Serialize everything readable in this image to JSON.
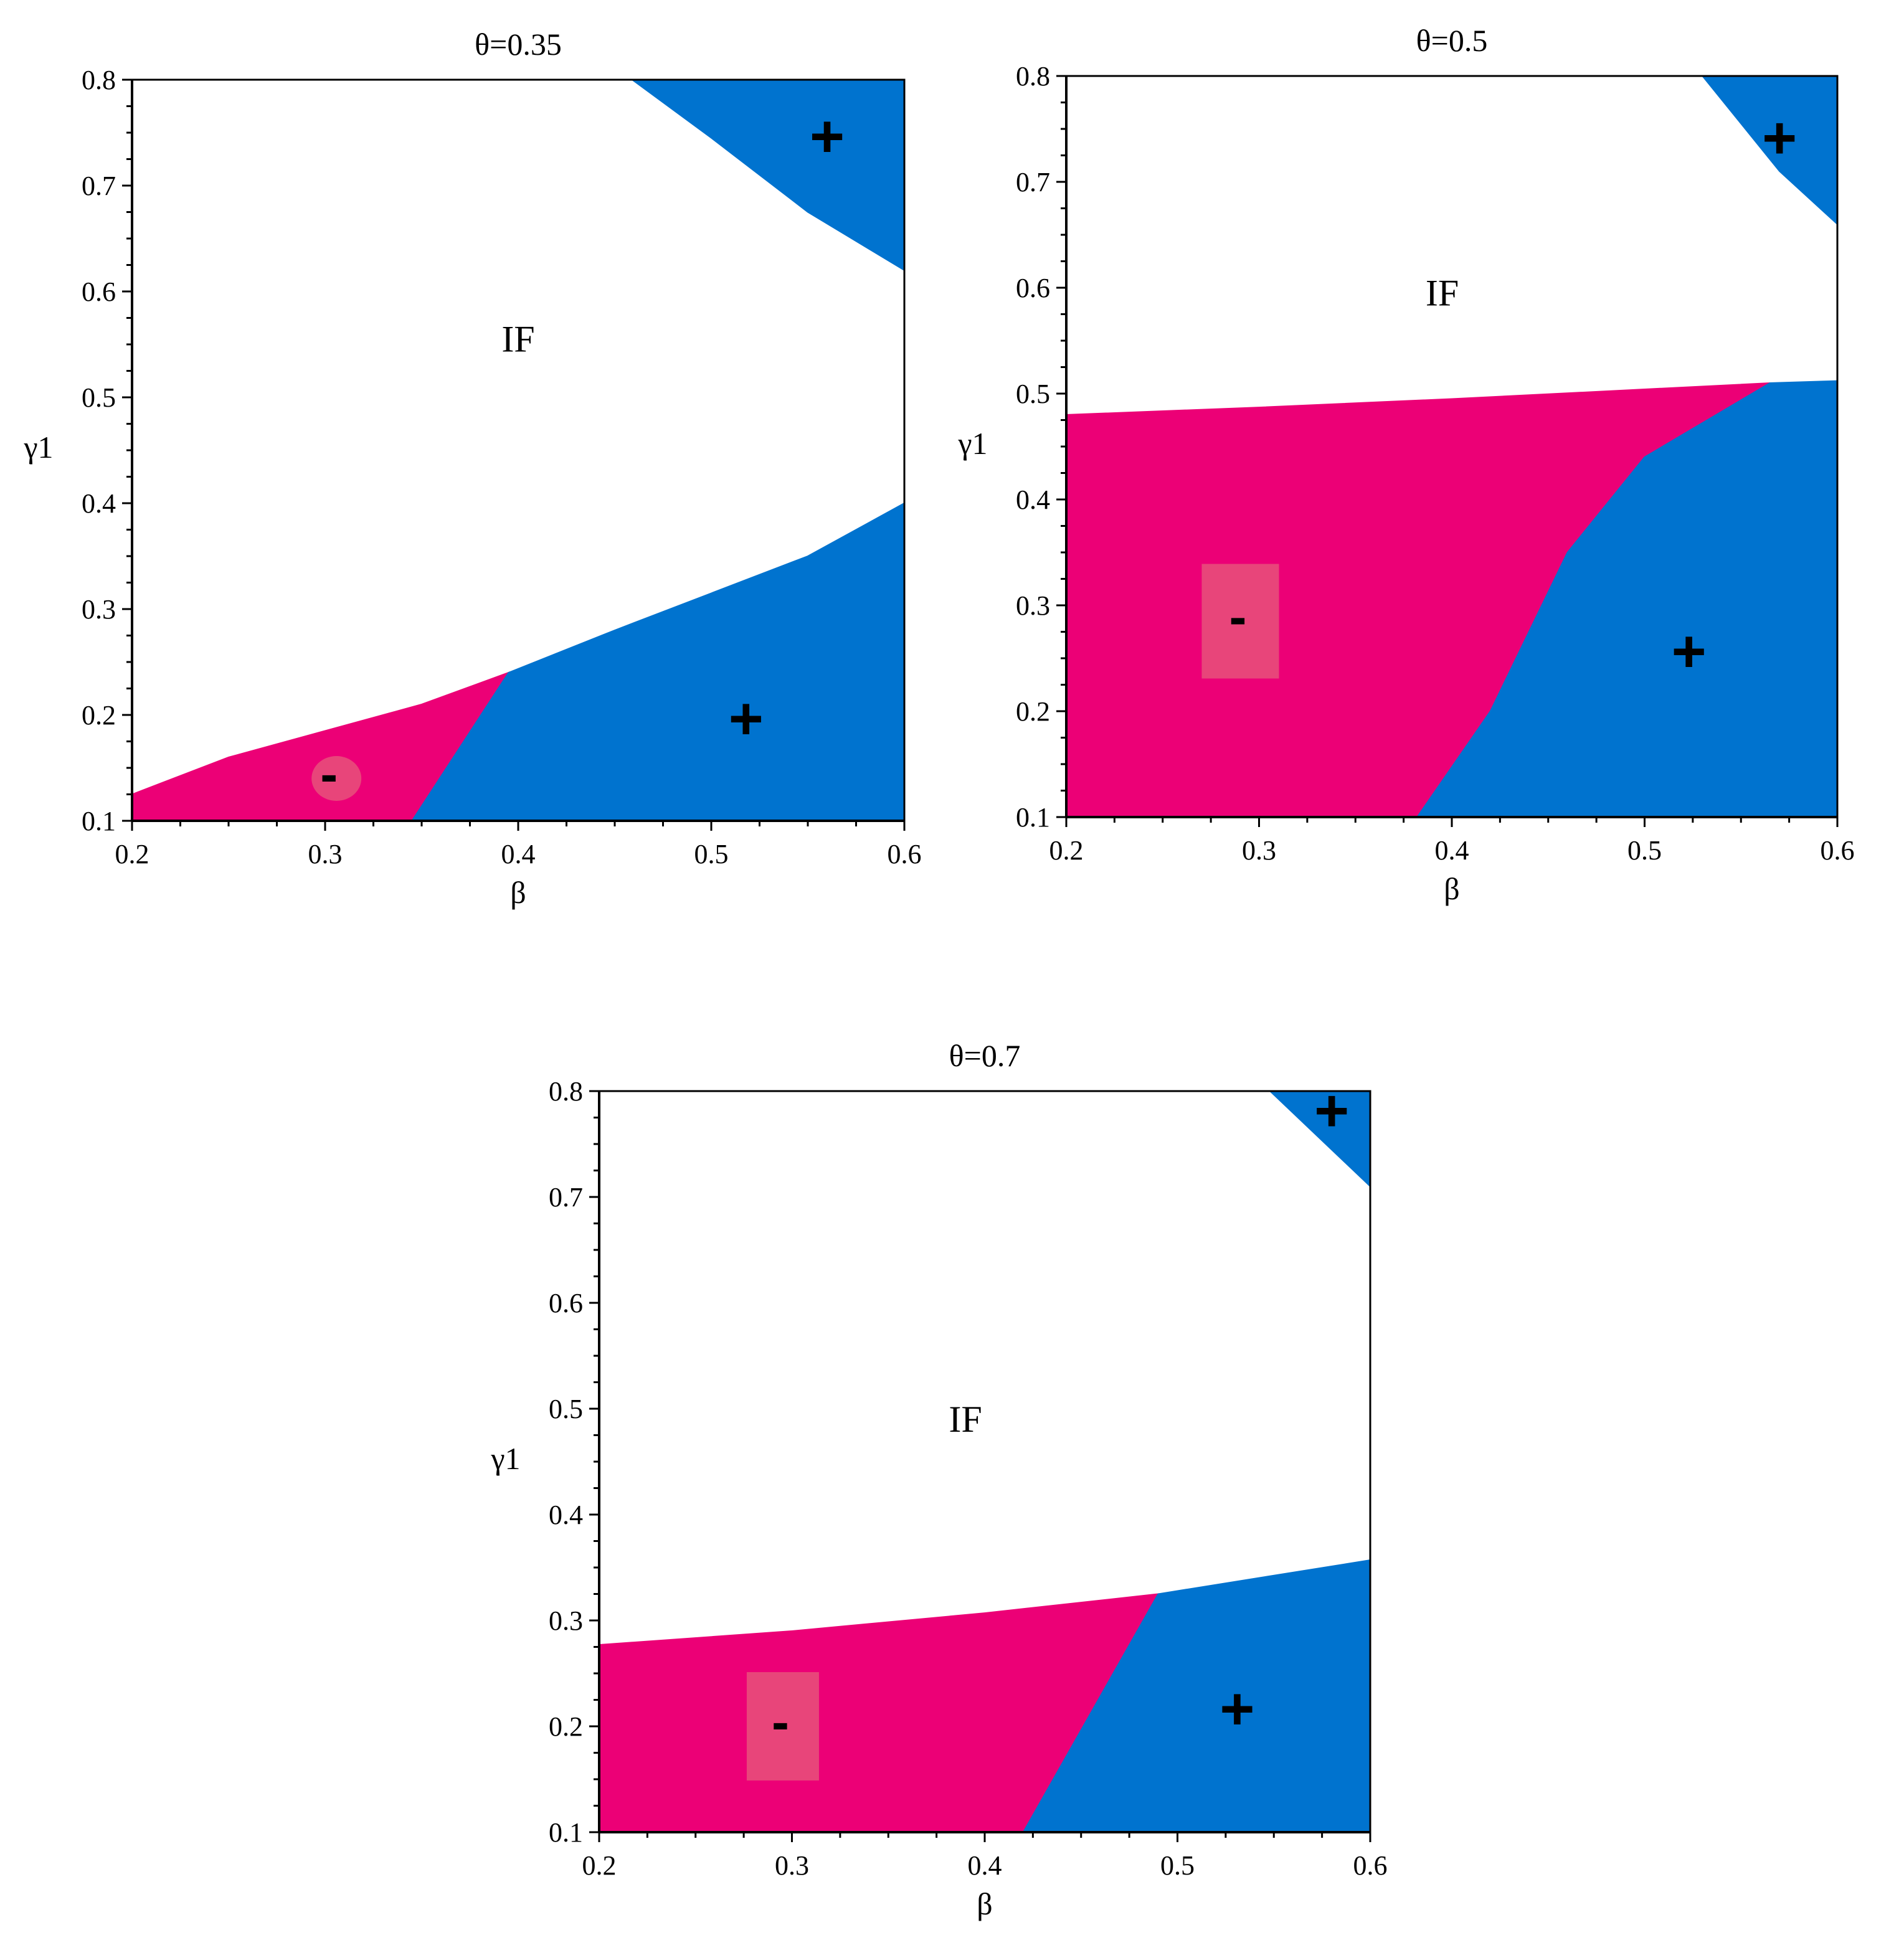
{
  "chart_data": [
    {
      "type": "heatmap",
      "title": "θ=0.35",
      "xlabel": "β",
      "ylabel": "γ1",
      "xlim": [
        0.2,
        0.6
      ],
      "ylim": [
        0.1,
        0.8
      ],
      "xticks": [
        "0.2",
        "0.3",
        "0.4",
        "0.5",
        "0.6"
      ],
      "yticks": [
        "0.1",
        "0.2",
        "0.3",
        "0.4",
        "0.5",
        "0.6",
        "0.7",
        "0.8"
      ],
      "regions": [
        {
          "sign": "+",
          "color": "#0073cf",
          "points": [
            [
              0.459,
              0.8
            ],
            [
              0.6,
              0.8
            ],
            [
              0.6,
              0.62
            ],
            [
              0.55,
              0.675
            ],
            [
              0.5,
              0.745
            ]
          ]
        },
        {
          "sign": "-",
          "color": "#ec0076",
          "points": [
            [
              0.2,
              0.1
            ],
            [
              0.345,
              0.1
            ],
            [
              0.395,
              0.24
            ],
            [
              0.35,
              0.21
            ],
            [
              0.3,
              0.185
            ],
            [
              0.25,
              0.16
            ],
            [
              0.2,
              0.125
            ]
          ]
        },
        {
          "sign": "+",
          "color": "#0073cf",
          "points": [
            [
              0.345,
              0.1
            ],
            [
              0.6,
              0.1
            ],
            [
              0.6,
              0.4
            ],
            [
              0.55,
              0.35
            ],
            [
              0.5,
              0.315
            ],
            [
              0.45,
              0.28
            ],
            [
              0.395,
              0.24
            ]
          ]
        }
      ],
      "annotations": [
        {
          "text": "IF",
          "x": 0.4,
          "y": 0.555
        },
        {
          "text": "+",
          "x": 0.56,
          "y": 0.745
        },
        {
          "text": "+",
          "x": 0.518,
          "y": 0.195
        },
        {
          "text": "-",
          "x": 0.302,
          "y": 0.14
        }
      ]
    },
    {
      "type": "heatmap",
      "title": "θ=0.5",
      "xlabel": "β",
      "ylabel": "γ1",
      "xlim": [
        0.2,
        0.6
      ],
      "ylim": [
        0.1,
        0.8
      ],
      "xticks": [
        "0.2",
        "0.3",
        "0.4",
        "0.5",
        "0.6"
      ],
      "yticks": [
        "0.1",
        "0.2",
        "0.3",
        "0.4",
        "0.5",
        "0.6",
        "0.7",
        "0.8"
      ],
      "regions": [
        {
          "sign": "+",
          "color": "#0073cf",
          "points": [
            [
              0.53,
              0.8
            ],
            [
              0.6,
              0.8
            ],
            [
              0.6,
              0.66
            ],
            [
              0.57,
              0.71
            ]
          ]
        },
        {
          "sign": "-",
          "color": "#ec0076",
          "points": [
            [
              0.2,
              0.1
            ],
            [
              0.382,
              0.1
            ],
            [
              0.42,
              0.2
            ],
            [
              0.46,
              0.35
            ],
            [
              0.5,
              0.44
            ],
            [
              0.565,
              0.51
            ],
            [
              0.4,
              0.495
            ],
            [
              0.3,
              0.487
            ],
            [
              0.2,
              0.48
            ]
          ]
        },
        {
          "sign": "+",
          "color": "#0073cf",
          "points": [
            [
              0.382,
              0.1
            ],
            [
              0.6,
              0.1
            ],
            [
              0.6,
              0.512
            ],
            [
              0.565,
              0.51
            ],
            [
              0.5,
              0.44
            ],
            [
              0.46,
              0.35
            ],
            [
              0.42,
              0.2
            ]
          ]
        }
      ],
      "annotations": [
        {
          "text": "IF",
          "x": 0.395,
          "y": 0.595
        },
        {
          "text": "+",
          "x": 0.57,
          "y": 0.74
        },
        {
          "text": "+",
          "x": 0.523,
          "y": 0.255
        },
        {
          "text": "-",
          "x": 0.289,
          "y": 0.285
        }
      ]
    },
    {
      "type": "heatmap",
      "title": "θ=0.7",
      "xlabel": "β",
      "ylabel": "γ1",
      "xlim": [
        0.2,
        0.6
      ],
      "ylim": [
        0.1,
        0.8
      ],
      "xticks": [
        "0.2",
        "0.3",
        "0.4",
        "0.5",
        "0.6"
      ],
      "yticks": [
        "0.1",
        "0.2",
        "0.3",
        "0.4",
        "0.5",
        "0.6",
        "0.7",
        "0.8"
      ],
      "regions": [
        {
          "sign": "+",
          "color": "#0073cf",
          "points": [
            [
              0.548,
              0.8
            ],
            [
              0.6,
              0.8
            ],
            [
              0.6,
              0.71
            ]
          ]
        },
        {
          "sign": "-",
          "color": "#ec0076",
          "points": [
            [
              0.2,
              0.1
            ],
            [
              0.42,
              0.1
            ],
            [
              0.49,
              0.325
            ],
            [
              0.4,
              0.307
            ],
            [
              0.3,
              0.29
            ],
            [
              0.2,
              0.277
            ]
          ]
        },
        {
          "sign": "+",
          "color": "#0073cf",
          "points": [
            [
              0.42,
              0.1
            ],
            [
              0.6,
              0.1
            ],
            [
              0.6,
              0.357
            ],
            [
              0.49,
              0.325
            ]
          ]
        }
      ],
      "annotations": [
        {
          "text": "IF",
          "x": 0.39,
          "y": 0.49
        },
        {
          "text": "+",
          "x": 0.58,
          "y": 0.78
        },
        {
          "text": "+",
          "x": 0.531,
          "y": 0.215
        },
        {
          "text": "-",
          "x": 0.294,
          "y": 0.2
        }
      ]
    }
  ]
}
